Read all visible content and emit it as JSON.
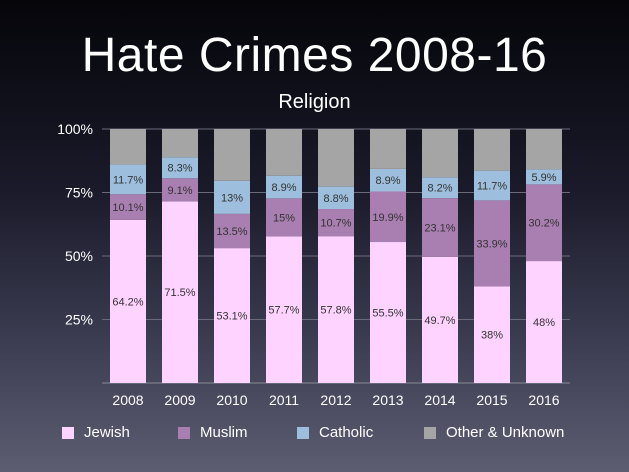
{
  "header": {
    "title": "Hate Crimes 2008-16",
    "subtitle": "Religion"
  },
  "chart_data": {
    "type": "bar",
    "stacked": true,
    "title": "Hate Crimes 2008-16",
    "subtitle": "Religion",
    "xlabel": "",
    "ylabel": "",
    "ylim": [
      0,
      100
    ],
    "y_ticks": [
      "100%",
      "75%",
      "50%",
      "25%"
    ],
    "grid": true,
    "legend_position": "bottom",
    "categories": [
      "2008",
      "2009",
      "2010",
      "2011",
      "2012",
      "2013",
      "2014",
      "2015",
      "2016"
    ],
    "series": [
      {
        "name": "Jewish",
        "color": "#ffd3ff",
        "values": [
          64.2,
          71.5,
          53.1,
          57.7,
          57.8,
          55.5,
          49.7,
          38,
          48
        ],
        "labels": [
          "64.2%",
          "71.5%",
          "53.1%",
          "57.7%",
          "57.8%",
          "55.5%",
          "49.7%",
          "38%",
          "48%"
        ]
      },
      {
        "name": "Muslim",
        "color": "#a97eb0",
        "values": [
          10.1,
          9.1,
          13.5,
          15,
          10.7,
          19.9,
          23.1,
          33.9,
          30.2
        ],
        "labels": [
          "10.1%",
          "9.1%",
          "13.5%",
          "15%",
          "10.7%",
          "19.9%",
          "23.1%",
          "33.9%",
          "30.2%"
        ]
      },
      {
        "name": "Catholic",
        "color": "#9dbfdd",
        "values": [
          11.7,
          8.3,
          13,
          8.9,
          8.8,
          8.9,
          8.2,
          11.7,
          5.9
        ],
        "labels": [
          "11.7%",
          "8.3%",
          "13%",
          "8.9%",
          "8.8%",
          "8.9%",
          "8.2%",
          "11.7%",
          "5.9%"
        ]
      },
      {
        "name": "Other & Unknown",
        "color": "#a5a5a5",
        "values": [
          14,
          11.1,
          20.4,
          18.4,
          22.7,
          15.7,
          19,
          16.4,
          15.9
        ],
        "labels": [
          "",
          "",
          "",
          "",
          "",
          "",
          "",
          "",
          ""
        ]
      }
    ]
  },
  "legend": {
    "items": [
      {
        "label": "Jewish",
        "color": "#ffd3ff"
      },
      {
        "label": "Muslim",
        "color": "#a97eb0"
      },
      {
        "label": "Catholic",
        "color": "#9dbfdd"
      },
      {
        "label": "Other & Unknown",
        "color": "#a5a5a5"
      }
    ]
  }
}
